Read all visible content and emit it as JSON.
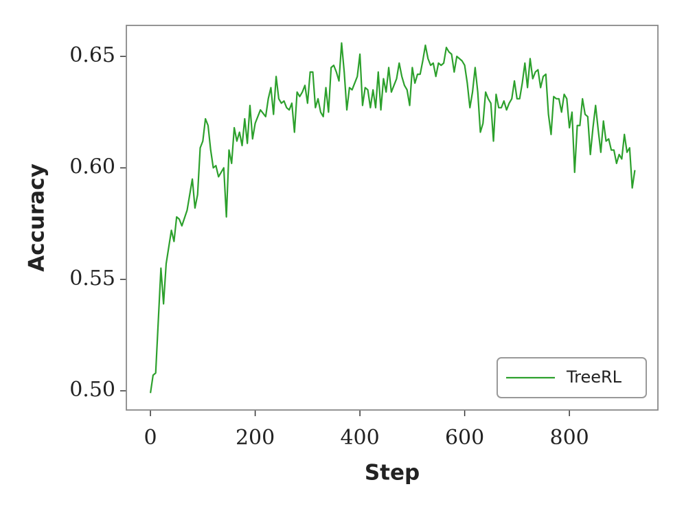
{
  "chart_data": {
    "type": "line",
    "xlabel": "Step",
    "ylabel": "Accuracy",
    "x": [
      0,
      5,
      10,
      20,
      25,
      30,
      40,
      45,
      50,
      55,
      60,
      70,
      80,
      85,
      90,
      95,
      100,
      105,
      110,
      115,
      120,
      125,
      130,
      140,
      145,
      150,
      155,
      160,
      165,
      170,
      175,
      180,
      185,
      190,
      195,
      200,
      210,
      220,
      225,
      230,
      235,
      240,
      245,
      250,
      255,
      260,
      265,
      270,
      275,
      280,
      285,
      290,
      295,
      300,
      305,
      310,
      315,
      320,
      325,
      330,
      335,
      340,
      345,
      350,
      355,
      360,
      365,
      370,
      375,
      380,
      385,
      390,
      395,
      400,
      405,
      410,
      415,
      420,
      425,
      430,
      435,
      440,
      445,
      450,
      455,
      460,
      465,
      470,
      475,
      480,
      485,
      490,
      495,
      500,
      505,
      510,
      515,
      520,
      525,
      530,
      535,
      540,
      545,
      550,
      555,
      560,
      565,
      570,
      575,
      580,
      585,
      590,
      595,
      600,
      605,
      610,
      615,
      620,
      625,
      630,
      635,
      640,
      645,
      650,
      655,
      660,
      665,
      670,
      675,
      680,
      685,
      690,
      695,
      700,
      705,
      710,
      715,
      720,
      725,
      730,
      735,
      740,
      745,
      750,
      755,
      760,
      765,
      770,
      775,
      780,
      785,
      790,
      795,
      800,
      805,
      810,
      815,
      820,
      825,
      830,
      835,
      840,
      845,
      850,
      855,
      860,
      865,
      870,
      875,
      880,
      885,
      890,
      895,
      900,
      905,
      910,
      915,
      920,
      925
    ],
    "series": [
      {
        "name": "TreeRL",
        "color": "#2ca02c",
        "values": [
          0.499,
          0.507,
          0.508,
          0.555,
          0.539,
          0.557,
          0.572,
          0.567,
          0.578,
          0.577,
          0.574,
          0.581,
          0.595,
          0.582,
          0.588,
          0.609,
          0.612,
          0.622,
          0.619,
          0.608,
          0.6,
          0.601,
          0.596,
          0.6,
          0.578,
          0.608,
          0.602,
          0.618,
          0.612,
          0.616,
          0.61,
          0.622,
          0.611,
          0.628,
          0.613,
          0.62,
          0.626,
          0.623,
          0.631,
          0.636,
          0.624,
          0.641,
          0.631,
          0.629,
          0.63,
          0.627,
          0.626,
          0.629,
          0.616,
          0.634,
          0.632,
          0.634,
          0.637,
          0.629,
          0.643,
          0.643,
          0.627,
          0.631,
          0.625,
          0.623,
          0.636,
          0.625,
          0.645,
          0.646,
          0.643,
          0.639,
          0.656,
          0.643,
          0.626,
          0.636,
          0.635,
          0.638,
          0.641,
          0.651,
          0.628,
          0.636,
          0.635,
          0.627,
          0.635,
          0.627,
          0.643,
          0.626,
          0.64,
          0.634,
          0.645,
          0.634,
          0.637,
          0.64,
          0.647,
          0.641,
          0.637,
          0.635,
          0.628,
          0.645,
          0.638,
          0.642,
          0.642,
          0.648,
          0.655,
          0.649,
          0.646,
          0.647,
          0.641,
          0.647,
          0.646,
          0.647,
          0.654,
          0.652,
          0.651,
          0.643,
          0.65,
          0.649,
          0.648,
          0.646,
          0.638,
          0.627,
          0.634,
          0.645,
          0.634,
          0.616,
          0.62,
          0.634,
          0.631,
          0.629,
          0.612,
          0.633,
          0.627,
          0.627,
          0.63,
          0.626,
          0.629,
          0.631,
          0.639,
          0.631,
          0.631,
          0.638,
          0.647,
          0.636,
          0.649,
          0.64,
          0.643,
          0.644,
          0.636,
          0.641,
          0.642,
          0.624,
          0.615,
          0.632,
          0.631,
          0.631,
          0.625,
          0.633,
          0.631,
          0.618,
          0.625,
          0.598,
          0.619,
          0.619,
          0.631,
          0.624,
          0.623,
          0.606,
          0.618,
          0.628,
          0.617,
          0.607,
          0.621,
          0.612,
          0.613,
          0.608,
          0.608,
          0.602,
          0.606,
          0.604,
          0.615,
          0.607,
          0.609,
          0.591,
          0.599
        ]
      }
    ],
    "xlim": [
      -46,
      969
    ],
    "xticks": [
      0,
      200,
      400,
      600,
      800
    ],
    "ylim": [
      0.4914,
      0.6639
    ],
    "yticks": [
      {
        "value": 0.5,
        "label": "0.50"
      },
      0.55,
      {
        "value": 0.6,
        "label": "0.60"
      },
      0.65
    ],
    "grid": false,
    "legend": "lower right"
  }
}
